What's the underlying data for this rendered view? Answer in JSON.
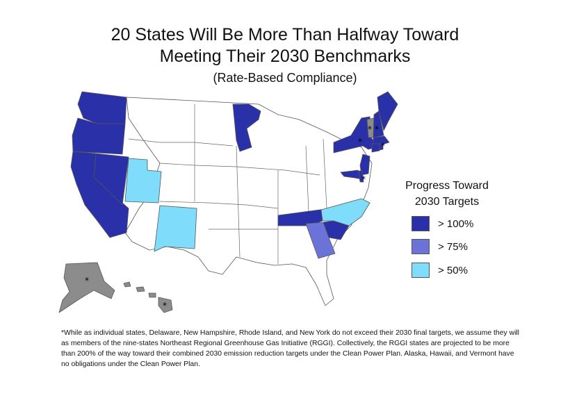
{
  "title": {
    "line1": "20 States Will Be More Than Halfway Toward",
    "line2": "Meeting Their 2030 Benchmarks",
    "subtitle": "(Rate-Based Compliance)"
  },
  "legend": {
    "title_line1": "Progress Toward",
    "title_line2": "2030 Targets",
    "items": [
      {
        "label": "> 100%",
        "color": "#2a31a8"
      },
      {
        "label": "> 75%",
        "color": "#6b72d8"
      },
      {
        "label": "> 50%",
        "color": "#7fdcfb"
      }
    ]
  },
  "colors": {
    "none": "#ffffff",
    "no_obligation": "#8c8c8c",
    "over_100": "#2a31a8",
    "over_75": "#6b72d8",
    "over_50": "#7fdcfb"
  },
  "asterisk": "*",
  "footnote": "*While as individual states, Delaware, New Hampshire, Rhode Island, and New York do not exceed their 2030 final targets, we assume they will as members of the nine-states Northeast Regional Greenhouse Gas Initiative (RGGI). Collectively, the RGGI states are projected to be more than 200% of the way toward their combined 2030 emission reduction targets under the Clean Power Plan. Alaska, Hawaii, and Vermont have no obligations under the Clean Power Plan.",
  "states": [
    {
      "name": "Washington",
      "abbr": "WA",
      "category": "over_100"
    },
    {
      "name": "Oregon",
      "abbr": "OR",
      "category": "over_100"
    },
    {
      "name": "California",
      "abbr": "CA",
      "category": "over_100"
    },
    {
      "name": "Nevada",
      "abbr": "NV",
      "category": "over_100"
    },
    {
      "name": "Minnesota",
      "abbr": "MN",
      "category": "over_100"
    },
    {
      "name": "Tennessee",
      "abbr": "TN",
      "category": "over_100"
    },
    {
      "name": "South Carolina",
      "abbr": "SC",
      "category": "over_100"
    },
    {
      "name": "New York",
      "abbr": "NY",
      "category": "over_100"
    },
    {
      "name": "Maine",
      "abbr": "ME",
      "category": "over_100"
    },
    {
      "name": "New Hampshire",
      "abbr": "NH",
      "category": "over_100"
    },
    {
      "name": "Massachusetts",
      "abbr": "MA",
      "category": "over_100"
    },
    {
      "name": "Rhode Island",
      "abbr": "RI",
      "category": "over_100"
    },
    {
      "name": "Connecticut",
      "abbr": "CT",
      "category": "over_100"
    },
    {
      "name": "New Jersey",
      "abbr": "NJ",
      "category": "over_100"
    },
    {
      "name": "Delaware",
      "abbr": "DE",
      "category": "over_100"
    },
    {
      "name": "Maryland",
      "abbr": "MD",
      "category": "over_100"
    },
    {
      "name": "Georgia",
      "abbr": "GA",
      "category": "over_75"
    },
    {
      "name": "Utah",
      "abbr": "UT",
      "category": "over_50"
    },
    {
      "name": "New Mexico",
      "abbr": "NM",
      "category": "over_50"
    },
    {
      "name": "North Carolina",
      "abbr": "NC",
      "category": "over_50"
    },
    {
      "name": "Vermont",
      "abbr": "VT",
      "category": "no_obligation"
    },
    {
      "name": "Alaska",
      "abbr": "AK",
      "category": "no_obligation"
    },
    {
      "name": "Hawaii",
      "abbr": "HI",
      "category": "no_obligation"
    }
  ]
}
